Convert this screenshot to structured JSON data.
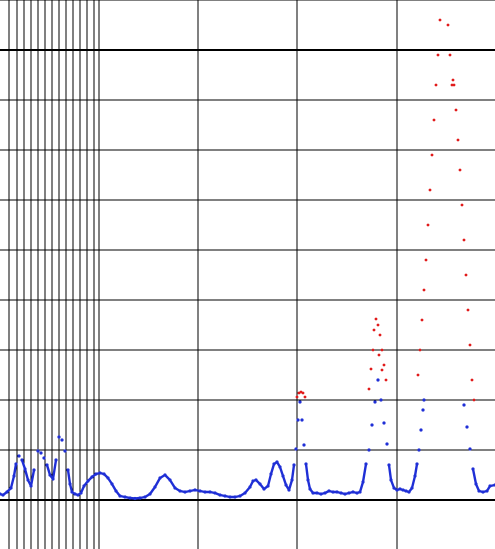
{
  "chart_data": {
    "type": "scatter",
    "title": "",
    "xlabel": "",
    "ylabel": "",
    "grid": true,
    "legend": "none",
    "colors": {
      "low": "#1f2fd6",
      "high": "#e11b1b",
      "grid": "#000000"
    },
    "threshold": 1.0,
    "series": [
      {
        "color_role": "low",
        "points": [
          [
            0.0,
            0.12
          ],
          [
            0.3,
            0.1
          ],
          [
            0.7,
            0.16
          ],
          [
            1.1,
            0.24
          ],
          [
            1.4,
            0.48
          ],
          [
            1.6,
            0.72
          ],
          [
            1.9,
            0.88
          ],
          [
            2.2,
            0.8
          ],
          [
            2.5,
            0.62
          ],
          [
            2.8,
            0.4
          ],
          [
            3.1,
            0.28
          ],
          [
            3.4,
            0.6
          ],
          [
            3.8,
            0.98
          ],
          [
            4.1,
            0.94
          ],
          [
            4.4,
            0.84
          ],
          [
            4.7,
            0.7
          ],
          [
            5.0,
            0.5
          ],
          [
            5.3,
            0.42
          ],
          [
            5.6,
            0.8
          ],
          [
            5.9,
            1.26
          ],
          [
            6.2,
            1.2
          ],
          [
            6.5,
            0.98
          ],
          [
            6.8,
            0.6
          ],
          [
            7.0,
            0.32
          ],
          [
            7.2,
            0.16
          ],
          [
            7.5,
            0.12
          ],
          [
            7.8,
            0.1
          ],
          [
            8.1,
            0.14
          ],
          [
            8.4,
            0.28
          ],
          [
            8.8,
            0.38
          ],
          [
            9.2,
            0.46
          ],
          [
            9.6,
            0.52
          ],
          [
            10.0,
            0.54
          ],
          [
            10.4,
            0.52
          ],
          [
            10.8,
            0.44
          ],
          [
            11.2,
            0.32
          ],
          [
            11.6,
            0.18
          ],
          [
            12.0,
            0.08
          ],
          [
            12.5,
            0.06
          ],
          [
            13.0,
            0.04
          ],
          [
            13.5,
            0.03
          ],
          [
            14.0,
            0.04
          ],
          [
            14.5,
            0.06
          ],
          [
            15.0,
            0.12
          ],
          [
            15.5,
            0.26
          ],
          [
            16.0,
            0.44
          ],
          [
            16.5,
            0.5
          ],
          [
            17.0,
            0.4
          ],
          [
            17.5,
            0.24
          ],
          [
            18.0,
            0.18
          ],
          [
            18.5,
            0.16
          ],
          [
            19.0,
            0.18
          ],
          [
            19.5,
            0.2
          ],
          [
            20.0,
            0.18
          ],
          [
            20.5,
            0.16
          ],
          [
            21.0,
            0.16
          ],
          [
            21.5,
            0.14
          ],
          [
            22.0,
            0.1
          ],
          [
            22.5,
            0.08
          ],
          [
            23.0,
            0.06
          ],
          [
            23.5,
            0.06
          ],
          [
            24.0,
            0.08
          ],
          [
            24.5,
            0.14
          ],
          [
            25.0,
            0.26
          ],
          [
            25.3,
            0.38
          ],
          [
            25.6,
            0.4
          ],
          [
            26.0,
            0.32
          ],
          [
            26.4,
            0.22
          ],
          [
            26.8,
            0.28
          ],
          [
            27.1,
            0.52
          ],
          [
            27.4,
            0.72
          ],
          [
            27.7,
            0.76
          ],
          [
            28.0,
            0.66
          ],
          [
            28.3,
            0.48
          ],
          [
            28.6,
            0.3
          ],
          [
            28.9,
            0.2
          ],
          [
            29.2,
            0.4
          ],
          [
            29.4,
            0.7
          ],
          [
            29.6,
            1.02
          ],
          [
            29.8,
            1.6
          ],
          [
            30.0,
            1.96
          ],
          [
            30.2,
            1.6
          ],
          [
            30.4,
            1.1
          ],
          [
            30.6,
            0.72
          ],
          [
            30.8,
            0.4
          ],
          [
            31.0,
            0.22
          ],
          [
            31.3,
            0.14
          ],
          [
            31.7,
            0.14
          ],
          [
            32.1,
            0.12
          ],
          [
            32.5,
            0.14
          ],
          [
            32.9,
            0.18
          ],
          [
            33.3,
            0.16
          ],
          [
            33.7,
            0.16
          ],
          [
            34.1,
            0.14
          ],
          [
            34.5,
            0.12
          ],
          [
            34.9,
            0.14
          ],
          [
            35.3,
            0.16
          ],
          [
            35.7,
            0.14
          ],
          [
            36.0,
            0.16
          ],
          [
            36.3,
            0.36
          ],
          [
            36.6,
            0.72
          ],
          [
            36.9,
            1.0
          ],
          [
            37.2,
            1.5
          ],
          [
            37.5,
            1.96
          ],
          [
            37.8,
            2.4
          ],
          [
            38.1,
            2.0
          ],
          [
            38.4,
            1.54
          ],
          [
            38.7,
            1.12
          ],
          [
            38.9,
            0.7
          ],
          [
            39.1,
            0.4
          ],
          [
            39.4,
            0.24
          ],
          [
            39.7,
            0.2
          ],
          [
            40.0,
            0.22
          ],
          [
            40.3,
            0.2
          ],
          [
            40.6,
            0.18
          ],
          [
            40.9,
            0.16
          ],
          [
            41.2,
            0.24
          ],
          [
            41.5,
            0.48
          ],
          [
            41.7,
            0.72
          ],
          [
            41.9,
            1.0
          ],
          [
            42.1,
            1.4
          ],
          [
            42.3,
            1.8
          ],
          [
            42.4,
            2.0
          ],
          [
            46.4,
            1.9
          ],
          [
            46.7,
            1.46
          ],
          [
            47.0,
            1.02
          ],
          [
            47.3,
            0.62
          ],
          [
            47.6,
            0.32
          ],
          [
            47.9,
            0.18
          ],
          [
            48.3,
            0.16
          ],
          [
            48.7,
            0.18
          ],
          [
            49.0,
            0.28
          ],
          [
            49.5,
            0.3
          ]
        ]
      },
      {
        "color_role": "high",
        "points": [
          [
            29.7,
            2.06
          ],
          [
            29.9,
            2.14
          ],
          [
            30.1,
            2.16
          ],
          [
            30.3,
            2.14
          ],
          [
            30.5,
            2.06
          ],
          [
            36.9,
            2.22
          ],
          [
            37.1,
            2.62
          ],
          [
            37.3,
            3.0
          ],
          [
            37.4,
            3.4
          ],
          [
            37.6,
            3.62
          ],
          [
            37.8,
            3.5
          ],
          [
            38.0,
            3.3
          ],
          [
            38.2,
            3.0
          ],
          [
            38.4,
            2.7
          ],
          [
            38.6,
            2.4
          ],
          [
            38.2,
            2.6
          ],
          [
            37.9,
            2.9
          ],
          [
            41.8,
            2.5
          ],
          [
            42.0,
            3.0
          ],
          [
            42.2,
            3.6
          ],
          [
            42.4,
            4.2
          ],
          [
            42.6,
            4.8
          ],
          [
            42.8,
            5.5
          ],
          [
            43.0,
            6.2
          ],
          [
            43.2,
            6.9
          ],
          [
            43.4,
            7.6
          ],
          [
            43.6,
            8.3
          ],
          [
            43.8,
            8.9
          ],
          [
            44.0,
            9.6
          ],
          [
            44.2,
            10.1
          ],
          [
            44.6,
            10.05
          ],
          [
            44.8,
            9.5
          ],
          [
            45.0,
            8.9
          ],
          [
            45.2,
            8.3
          ],
          [
            45.3,
            8.4
          ],
          [
            45.4,
            8.3
          ],
          [
            45.6,
            7.8
          ],
          [
            45.8,
            7.2
          ],
          [
            46.0,
            6.6
          ],
          [
            46.2,
            5.9
          ],
          [
            46.4,
            5.2
          ],
          [
            46.6,
            4.5
          ],
          [
            46.8,
            3.8
          ],
          [
            47.0,
            3.1
          ],
          [
            47.2,
            2.4
          ],
          [
            47.4,
            2.0
          ]
        ]
      }
    ],
    "xlim": [
      0,
      49.5
    ],
    "ylim": [
      -1,
      10
    ]
  }
}
